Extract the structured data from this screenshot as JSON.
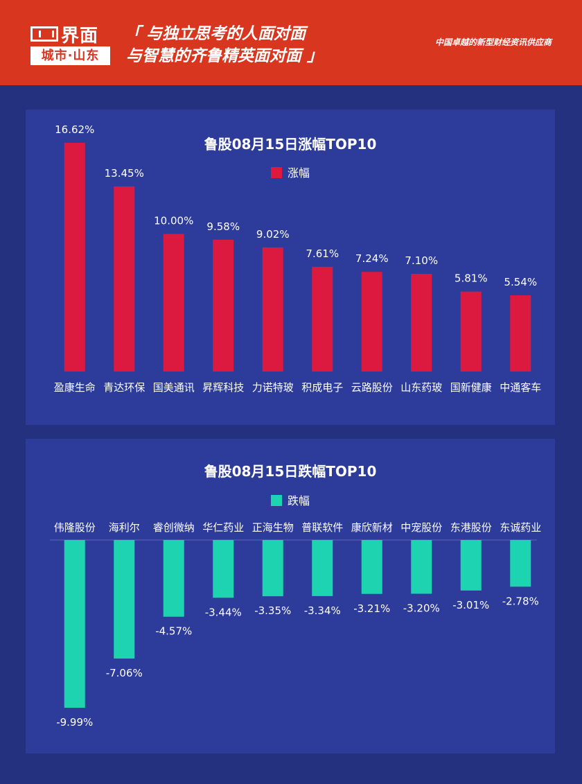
{
  "header": {
    "logo_name": "界面",
    "logo_sub": "城市·山东",
    "slogan_line1": "「 与独立思考的人面对面",
    "slogan_line2": "与智慧的齐鲁精英面对面 」",
    "tagline": "中国卓越的新型财经资讯供应商",
    "background": "#d8361f"
  },
  "chart_data": [
    {
      "type": "bar",
      "title": "鲁股08月15日涨幅TOP10",
      "legend": "涨幅",
      "color": "#dc1a3f",
      "categories": [
        "盈康生命",
        "青达环保",
        "国美通讯",
        "昇辉科技",
        "力诺特玻",
        "积成电子",
        "云路股份",
        "山东药玻",
        "国新健康",
        "中通客车"
      ],
      "values": [
        16.62,
        13.45,
        10.0,
        9.58,
        9.02,
        7.61,
        7.24,
        7.1,
        5.81,
        5.54
      ],
      "labels": [
        "16.62%",
        "13.45%",
        "10.00%",
        "9.58%",
        "9.02%",
        "7.61%",
        "7.24%",
        "7.10%",
        "5.81%",
        "5.54%"
      ],
      "ylim": [
        0,
        16.62
      ]
    },
    {
      "type": "bar",
      "title": "鲁股08月15日跌幅TOP10",
      "legend": "跌幅",
      "color": "#1dd3b0",
      "categories": [
        "伟隆股份",
        "海利尔",
        "睿创微纳",
        "华仁药业",
        "正海生物",
        "普联软件",
        "康欣新材",
        "中宠股份",
        "东港股份",
        "东诚药业"
      ],
      "values": [
        -9.99,
        -7.06,
        -4.57,
        -3.44,
        -3.35,
        -3.34,
        -3.21,
        -3.2,
        -3.01,
        -2.78
      ],
      "labels": [
        "-9.99%",
        "-7.06%",
        "-4.57%",
        "-3.44%",
        "-3.35%",
        "-3.34%",
        "-3.21%",
        "-3.20%",
        "-3.01%",
        "-2.78%"
      ],
      "ylim": [
        -9.99,
        0
      ]
    }
  ]
}
